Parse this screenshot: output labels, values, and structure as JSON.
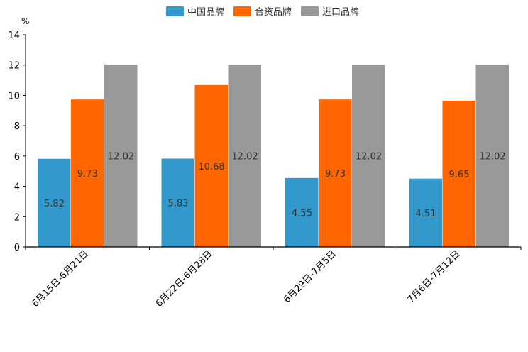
{
  "chart_data": {
    "type": "bar",
    "title": "",
    "ylabel": "%",
    "xlabel": "",
    "ylim": [
      0,
      14
    ],
    "yticks": [
      0,
      2,
      4,
      6,
      8,
      10,
      12,
      14
    ],
    "legend_position": "top-center",
    "grid": false,
    "categories": [
      "6月15日-6月21日",
      "6月22日-6月28日",
      "6月29日-7月5日",
      "7月6日-7月12日"
    ],
    "series": [
      {
        "name": "中国品牌",
        "color": "#3399cc",
        "values": [
          5.82,
          5.83,
          4.55,
          4.51
        ]
      },
      {
        "name": "合资品牌",
        "color": "#ff6600",
        "values": [
          9.73,
          10.68,
          9.73,
          9.65
        ]
      },
      {
        "name": "进口品牌",
        "color": "#999999",
        "values": [
          12.02,
          12.02,
          12.02,
          12.02
        ]
      }
    ]
  }
}
